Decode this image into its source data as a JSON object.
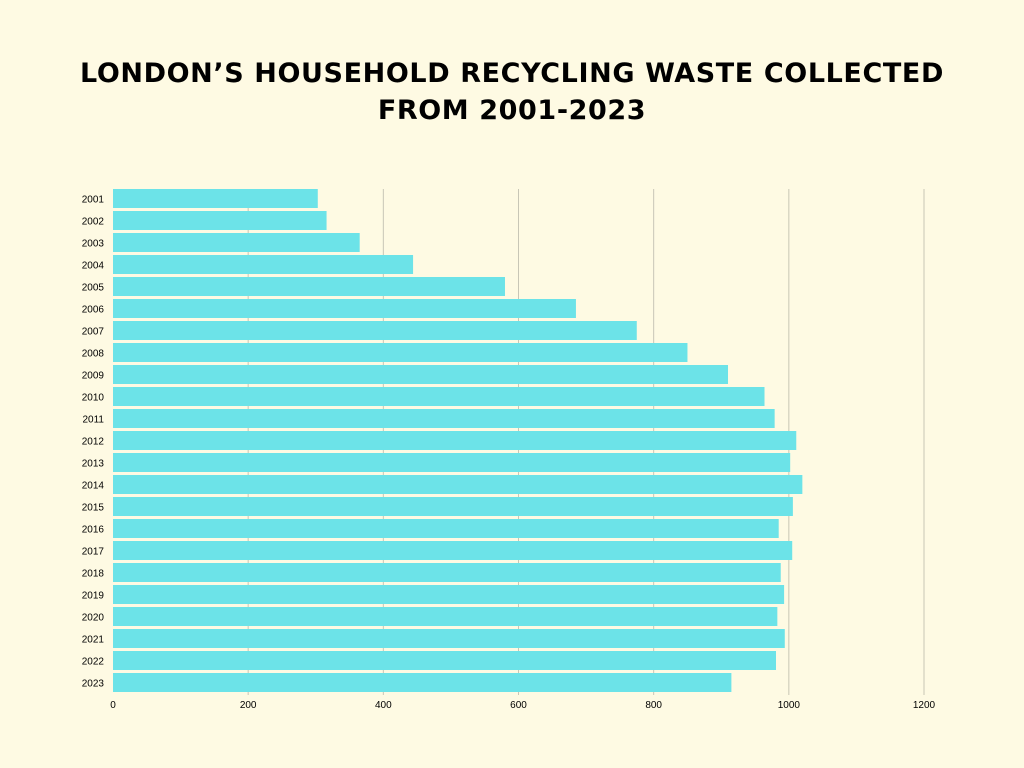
{
  "title_line1": "LONDON’S HOUSEHOLD RECYCLING WASTE COLLECTED",
  "title_line2": "FROM 2001-2023",
  "colors": {
    "background": "#fefae3",
    "bar": "#6ce3e8",
    "grid": "#c8c6b6",
    "text": "#000000"
  },
  "chart_data": {
    "type": "bar",
    "orientation": "horizontal",
    "title": "LONDON’S HOUSEHOLD RECYCLING WASTE COLLECTED FROM 2001-2023",
    "xlabel": "",
    "ylabel": "",
    "xlim": [
      0,
      1200
    ],
    "x_ticks": [
      0,
      200,
      400,
      600,
      800,
      1000,
      1200
    ],
    "grid": "vertical",
    "categories": [
      "2001",
      "2002",
      "2003",
      "2004",
      "2005",
      "2006",
      "2007",
      "2008",
      "2009",
      "2010",
      "2011",
      "2012",
      "2013",
      "2014",
      "2015",
      "2016",
      "2017",
      "2018",
      "2019",
      "2020",
      "2021",
      "2022",
      "2023"
    ],
    "values": [
      303,
      316,
      365,
      444,
      580,
      685,
      775,
      850,
      910,
      964,
      979,
      1011,
      1002,
      1020,
      1006,
      985,
      1005,
      988,
      993,
      983,
      994,
      981,
      915
    ]
  }
}
